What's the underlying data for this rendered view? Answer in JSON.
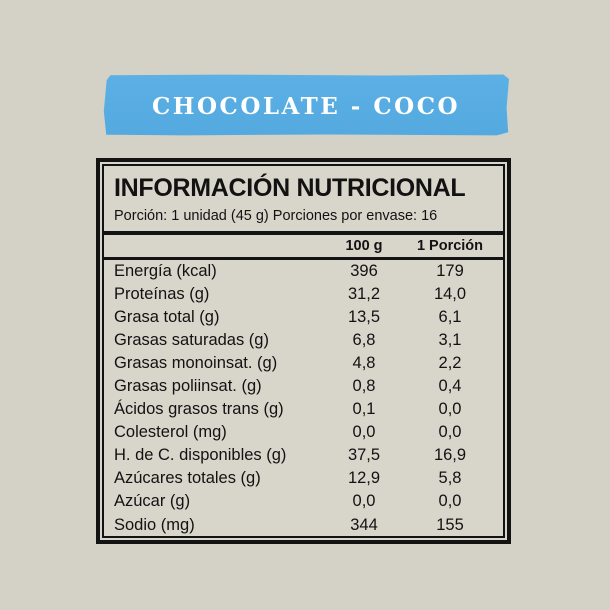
{
  "banner": {
    "title": "CHOCOLATE - COCO",
    "background_color": "#57ACE2",
    "text_color": "#FFFFFF"
  },
  "label": {
    "title": "INFORMACIÓN NUTRICIONAL",
    "serving_info": "Porción: 1 unidad (45 g) Porciones por envase: 16",
    "columns": {
      "per100": "100 g",
      "portion": "1 Porción"
    },
    "rows": [
      {
        "name": "Energía (kcal)",
        "per100": "396",
        "portion": "179"
      },
      {
        "name": "Proteínas (g)",
        "per100": "31,2",
        "portion": "14,0"
      },
      {
        "name": "Grasa total (g)",
        "per100": "13,5",
        "portion": "6,1"
      },
      {
        "name": "Grasas saturadas (g)",
        "per100": "6,8",
        "portion": "3,1"
      },
      {
        "name": "Grasas monoinsat. (g)",
        "per100": "4,8",
        "portion": "2,2"
      },
      {
        "name": "Grasas poliinsat. (g)",
        "per100": "0,8",
        "portion": "0,4"
      },
      {
        "name": "Ácidos grasos trans (g)",
        "per100": "0,1",
        "portion": "0,0"
      },
      {
        "name": "Colesterol (mg)",
        "per100": "0,0",
        "portion": "0,0"
      },
      {
        "name": "H. de C. disponibles (g)",
        "per100": "37,5",
        "portion": "16,9"
      },
      {
        "name": "Azúcares totales (g)",
        "per100": "12,9",
        "portion": "5,8"
      },
      {
        "name": "Azúcar (g)",
        "per100": "0,0",
        "portion": "0,0"
      },
      {
        "name": "Sodio (mg)",
        "per100": "344",
        "portion": "155"
      }
    ]
  },
  "colors": {
    "page_background": "#D4D1C6",
    "label_background": "#D8D5CB",
    "border_color": "#131313",
    "text_color": "#121212"
  }
}
